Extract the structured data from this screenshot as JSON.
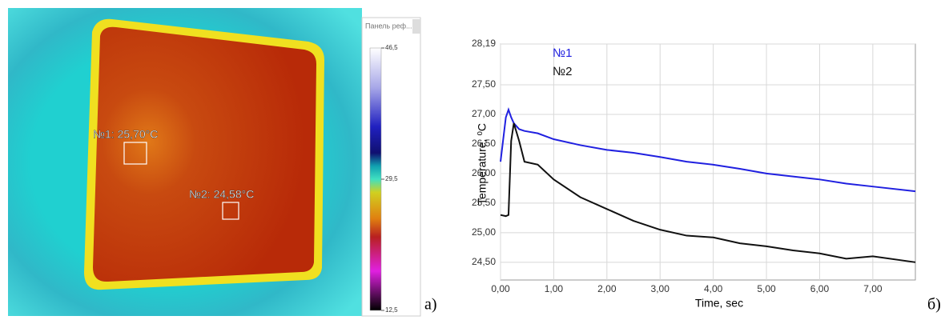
{
  "thermal": {
    "panel_title": "Панель реф...",
    "spots": [
      {
        "label": "№1: 25,70°C"
      },
      {
        "label": "№2: 24,58°C"
      }
    ],
    "colorbar": {
      "lim": [
        12.5,
        46.5
      ],
      "ticks": [
        {
          "value": 46.5,
          "label": "46,5"
        },
        {
          "value": 29.5,
          "label": "29,5"
        },
        {
          "value": 12.5,
          "label": "12,5"
        }
      ]
    },
    "caption": "а)"
  },
  "chart_data": {
    "type": "line",
    "caption": "б)",
    "xlabel": "Time, sec",
    "ylabel": "Temperature, ⁰C",
    "x": [
      0,
      0.1,
      0.15,
      0.2,
      0.25,
      0.35,
      0.45,
      0.7,
      1.0,
      1.5,
      2.0,
      2.5,
      3.0,
      3.5,
      4.0,
      4.5,
      5.0,
      5.5,
      6.0,
      6.5,
      7.0,
      7.8
    ],
    "series": [
      {
        "name": "№1",
        "color": "#2020e0",
        "values": [
          26.2,
          26.95,
          27.08,
          26.95,
          26.85,
          26.75,
          26.72,
          26.68,
          26.58,
          26.48,
          26.4,
          26.35,
          26.28,
          26.2,
          26.15,
          26.08,
          26.0,
          25.95,
          25.9,
          25.83,
          25.78,
          25.7
        ]
      },
      {
        "name": "№2",
        "color": "#111111",
        "values": [
          25.3,
          25.28,
          25.3,
          26.55,
          26.85,
          26.55,
          26.2,
          26.15,
          25.9,
          25.6,
          25.4,
          25.2,
          25.05,
          24.95,
          24.92,
          24.82,
          24.77,
          24.7,
          24.65,
          24.56,
          24.6,
          24.5
        ]
      }
    ],
    "xlim": [
      0,
      7.8
    ],
    "xticks": [
      {
        "value": 0,
        "label": "0,00"
      },
      {
        "value": 1,
        "label": "1,00"
      },
      {
        "value": 2,
        "label": "2,00"
      },
      {
        "value": 3,
        "label": "3,00"
      },
      {
        "value": 4,
        "label": "4,00"
      },
      {
        "value": 5,
        "label": "5,00"
      },
      {
        "value": 6,
        "label": "6,00"
      },
      {
        "value": 7,
        "label": "7,00"
      }
    ],
    "ylim": [
      24.2,
      28.19
    ],
    "yticks": [
      {
        "value": 24.5,
        "label": "24,50"
      },
      {
        "value": 25,
        "label": "25,00"
      },
      {
        "value": 25.5,
        "label": "25,50"
      },
      {
        "value": 26,
        "label": "26,00"
      },
      {
        "value": 26.5,
        "label": "26,50"
      },
      {
        "value": 27,
        "label": "27,00"
      },
      {
        "value": 27.5,
        "label": "27,50"
      },
      {
        "value": 28.19,
        "label": "28,19"
      }
    ],
    "grid": true
  }
}
